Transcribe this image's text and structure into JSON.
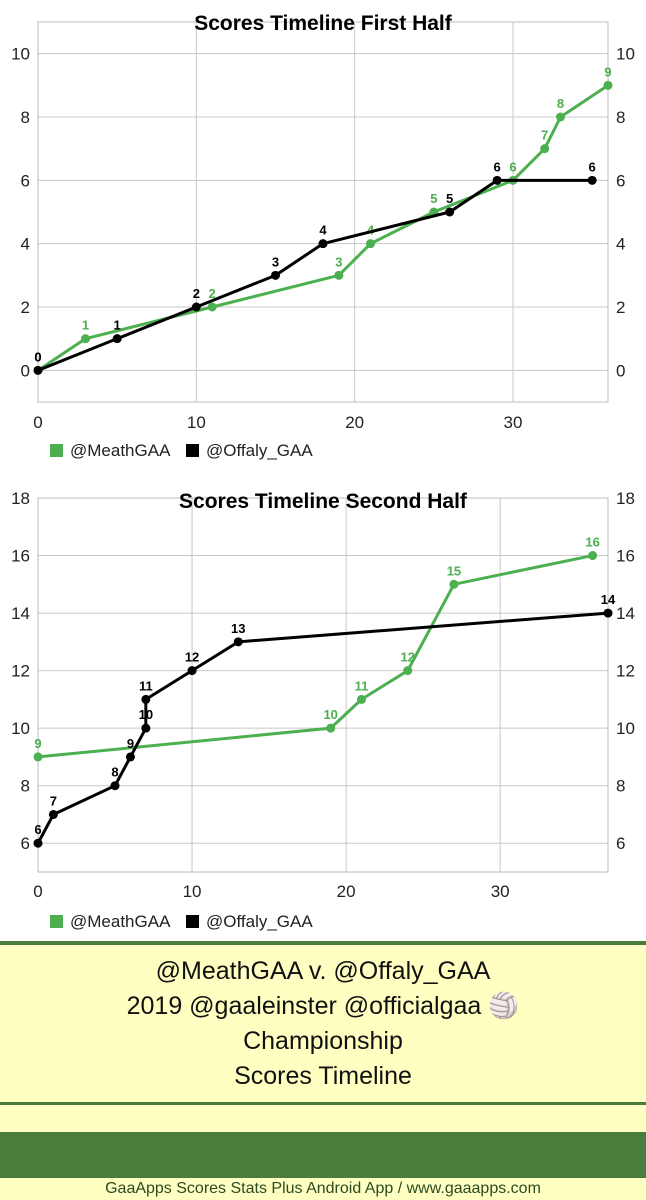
{
  "chart_data": [
    {
      "type": "line",
      "title": "Scores Timeline First Half",
      "xlim": [
        0,
        36
      ],
      "ylim": [
        -1,
        11
      ],
      "x_ticks": [
        "0",
        "10",
        "20",
        "30"
      ],
      "y_ticks": [
        "0",
        "2",
        "4",
        "6",
        "8",
        "10"
      ],
      "legend": [
        "@MeathGAA",
        "@Offaly_GAA"
      ],
      "series": [
        {
          "name": "@MeathGAA",
          "color": "#4caf50",
          "points": [
            [
              0,
              0
            ],
            [
              3,
              1
            ],
            [
              11,
              2
            ],
            [
              19,
              3
            ],
            [
              21,
              4
            ],
            [
              25,
              5
            ],
            [
              30,
              6
            ],
            [
              32,
              7
            ],
            [
              33,
              8
            ],
            [
              36,
              9
            ]
          ],
          "labels": [
            "0",
            "1",
            "2",
            "3",
            "4",
            "5",
            "6",
            "7",
            "8",
            "9"
          ]
        },
        {
          "name": "@Offaly_GAA",
          "color": "#000000",
          "points": [
            [
              0,
              0
            ],
            [
              5,
              1
            ],
            [
              10,
              2
            ],
            [
              15,
              3
            ],
            [
              18,
              4
            ],
            [
              26,
              5
            ],
            [
              29,
              6
            ],
            [
              35,
              6
            ]
          ],
          "labels": [
            "0",
            "1",
            "2",
            "3",
            "4",
            "5",
            "6",
            "6"
          ]
        }
      ]
    },
    {
      "type": "line",
      "title": "Scores Timeline Second Half",
      "xlim": [
        0,
        37
      ],
      "ylim": [
        5,
        18
      ],
      "x_ticks": [
        "0",
        "10",
        "20",
        "30"
      ],
      "y_ticks": [
        "6",
        "8",
        "10",
        "12",
        "14",
        "16",
        "18"
      ],
      "legend": [
        "@MeathGAA",
        "@Offaly_GAA"
      ],
      "series": [
        {
          "name": "@MeathGAA",
          "color": "#4caf50",
          "points": [
            [
              0,
              9
            ],
            [
              19,
              10
            ],
            [
              21,
              11
            ],
            [
              24,
              12
            ],
            [
              27,
              15
            ],
            [
              36,
              16
            ]
          ],
          "labels": [
            "9",
            "10",
            "11",
            "12",
            "15",
            "16"
          ]
        },
        {
          "name": "@Offaly_GAA",
          "color": "#000000",
          "points": [
            [
              0,
              6
            ],
            [
              1,
              7
            ],
            [
              5,
              8
            ],
            [
              6,
              9
            ],
            [
              7,
              10
            ],
            [
              7,
              11
            ],
            [
              10,
              12
            ],
            [
              13,
              13
            ],
            [
              37,
              14
            ]
          ],
          "labels": [
            "6",
            "7",
            "8",
            "9",
            "10",
            "11",
            "12",
            "13",
            "14"
          ]
        }
      ]
    }
  ],
  "banner": {
    "line1": "@MeathGAA v. @Offaly_GAA",
    "line2": "2019 @gaaleinster @officialgaa 🏐",
    "line3": "Championship",
    "line4": "Scores Timeline"
  },
  "footer": "GaaApps Scores Stats Plus Android App / www.gaaapps.com"
}
